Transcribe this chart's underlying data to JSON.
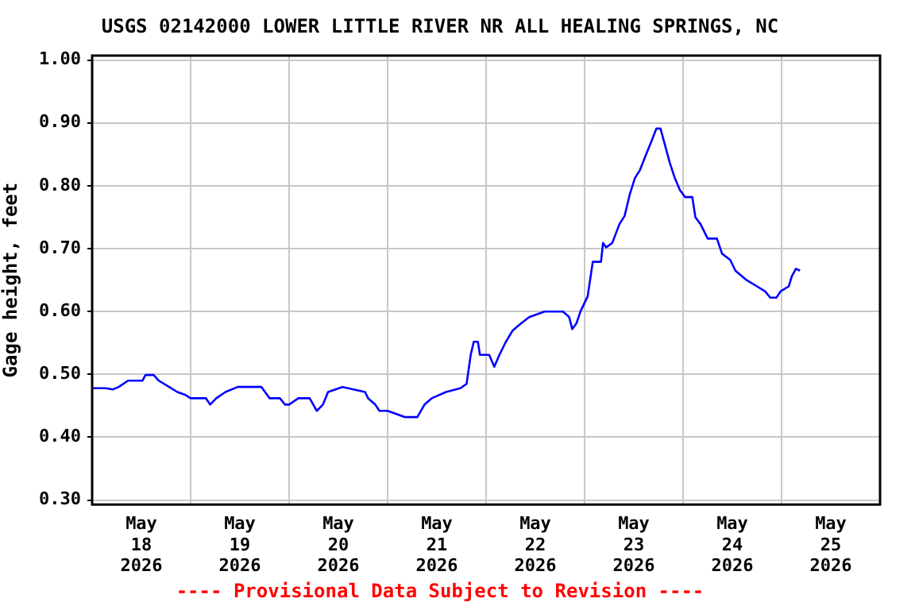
{
  "chart_data": {
    "type": "line",
    "title": "USGS 02142000 LOWER LITTLE RIVER NR ALL HEALING SPRINGS, NC",
    "ylabel": "Gage height, feet",
    "annotations": [
      "---- Provisional Data Subject to Revision ----"
    ],
    "x": [
      "2026-05-18T00:00",
      "2026-05-18T03:15",
      "2026-05-18T05:00",
      "2026-05-18T06:30",
      "2026-05-18T08:45",
      "2026-05-18T12:15",
      "2026-05-18T13:00",
      "2026-05-18T15:00",
      "2026-05-18T16:15",
      "2026-05-18T18:45",
      "2026-05-18T20:45",
      "2026-05-18T22:30",
      "2026-05-19T00:00",
      "2026-05-19T03:45",
      "2026-05-19T04:45",
      "2026-05-19T06:15",
      "2026-05-19T08:30",
      "2026-05-19T11:30",
      "2026-05-19T17:15",
      "2026-05-19T19:15",
      "2026-05-19T21:45",
      "2026-05-19T23:00",
      "2026-05-20T00:00",
      "2026-05-20T02:15",
      "2026-05-20T05:00",
      "2026-05-20T06:45",
      "2026-05-20T08:15",
      "2026-05-20T09:30",
      "2026-05-20T13:00",
      "2026-05-20T18:30",
      "2026-05-20T19:15",
      "2026-05-20T21:00",
      "2026-05-20T22:00",
      "2026-05-21T00:00",
      "2026-05-21T04:15",
      "2026-05-21T07:15",
      "2026-05-21T09:00",
      "2026-05-21T10:45",
      "2026-05-21T14:15",
      "2026-05-21T17:45",
      "2026-05-21T19:15",
      "2026-05-21T20:15",
      "2026-05-21T21:00",
      "2026-05-21T22:00",
      "2026-05-21T22:30",
      "2026-05-22T00:45",
      "2026-05-22T02:00",
      "2026-05-22T03:15",
      "2026-05-22T04:45",
      "2026-05-22T06:30",
      "2026-05-22T08:30",
      "2026-05-22T10:30",
      "2026-05-22T14:15",
      "2026-05-22T18:45",
      "2026-05-22T20:15",
      "2026-05-22T21:00",
      "2026-05-22T22:00",
      "2026-05-22T23:00",
      "2026-05-23T00:45",
      "2026-05-23T02:00",
      "2026-05-23T04:00",
      "2026-05-23T04:30",
      "2026-05-23T05:15",
      "2026-05-23T06:45",
      "2026-05-23T08:30",
      "2026-05-23T09:45",
      "2026-05-23T11:00",
      "2026-05-23T12:15",
      "2026-05-23T13:30",
      "2026-05-23T15:00",
      "2026-05-23T16:15",
      "2026-05-23T17:30",
      "2026-05-23T18:30",
      "2026-05-23T19:15",
      "2026-05-23T20:45",
      "2026-05-23T22:00",
      "2026-05-23T23:15",
      "2026-05-24T00:30",
      "2026-05-24T02:15",
      "2026-05-24T03:00",
      "2026-05-24T04:15",
      "2026-05-24T06:00",
      "2026-05-24T08:15",
      "2026-05-24T09:30",
      "2026-05-24T11:30",
      "2026-05-24T12:45",
      "2026-05-24T15:15",
      "2026-05-24T18:00",
      "2026-05-24T20:00",
      "2026-05-24T21:15",
      "2026-05-24T22:45",
      "2026-05-24T23:45",
      "2026-05-25T01:45",
      "2026-05-25T02:30",
      "2026-05-25T03:30",
      "2026-05-25T04:30"
    ],
    "series": [
      {
        "color": "#0000ff",
        "values": [
          0.478,
          0.478,
          0.476,
          0.48,
          0.49,
          0.49,
          0.499,
          0.499,
          0.49,
          0.48,
          0.472,
          0.468,
          0.462,
          0.462,
          0.452,
          0.462,
          0.472,
          0.48,
          0.48,
          0.462,
          0.462,
          0.452,
          0.452,
          0.462,
          0.462,
          0.442,
          0.452,
          0.472,
          0.48,
          0.472,
          0.462,
          0.452,
          0.442,
          0.442,
          0.432,
          0.432,
          0.452,
          0.462,
          0.472,
          0.478,
          0.485,
          0.531,
          0.552,
          0.552,
          0.531,
          0.531,
          0.512,
          0.531,
          0.551,
          0.57,
          0.581,
          0.591,
          0.6,
          0.6,
          0.591,
          0.572,
          0.581,
          0.6,
          0.624,
          0.679,
          0.679,
          0.709,
          0.702,
          0.709,
          0.739,
          0.752,
          0.786,
          0.812,
          0.825,
          0.85,
          0.87,
          0.891,
          0.891,
          0.873,
          0.837,
          0.812,
          0.793,
          0.782,
          0.782,
          0.75,
          0.739,
          0.716,
          0.716,
          0.692,
          0.682,
          0.665,
          0.651,
          0.64,
          0.632,
          0.622,
          0.622,
          0.632,
          0.64,
          0.656,
          0.668,
          0.665
        ]
      }
    ],
    "xlim": [
      "2026-05-18T00:00",
      "2026-05-26T00:00"
    ],
    "xticks": [
      {
        "value": "2026-05-18T12:00",
        "label": "May 18 2026"
      },
      {
        "value": "2026-05-19T00:00",
        "label": null
      },
      {
        "value": "2026-05-19T12:00",
        "label": "May 19 2026"
      },
      {
        "value": "2026-05-20T00:00",
        "label": null
      },
      {
        "value": "2026-05-20T12:00",
        "label": "May 20 2026"
      },
      {
        "value": "2026-05-21T00:00",
        "label": null
      },
      {
        "value": "2026-05-21T12:00",
        "label": "May 21 2026"
      },
      {
        "value": "2026-05-22T00:00",
        "label": null
      },
      {
        "value": "2026-05-22T12:00",
        "label": "May 22 2026"
      },
      {
        "value": "2026-05-23T00:00",
        "label": null
      },
      {
        "value": "2026-05-23T12:00",
        "label": "May 23 2026"
      },
      {
        "value": "2026-05-24T00:00",
        "label": null
      },
      {
        "value": "2026-05-24T12:00",
        "label": "May 24 2026"
      },
      {
        "value": "2026-05-25T00:00",
        "label": null
      },
      {
        "value": "2026-05-25T12:00",
        "label": "May 25 2026"
      }
    ],
    "ylim": [
      0.293,
      1.007
    ],
    "yticks": [
      {
        "value": 0.3,
        "label": "0.30"
      },
      {
        "value": 0.4,
        "label": "0.40"
      },
      {
        "value": 0.5,
        "label": "0.50"
      },
      {
        "value": 0.6,
        "label": "0.60"
      },
      {
        "value": 0.7,
        "label": "0.70"
      },
      {
        "value": 0.8,
        "label": "0.80"
      },
      {
        "value": 0.9,
        "label": "0.90"
      },
      {
        "value": 1.0,
        "label": "1.00"
      }
    ],
    "grid": true,
    "legend": false,
    "marker": "none",
    "line_style": "solid"
  }
}
